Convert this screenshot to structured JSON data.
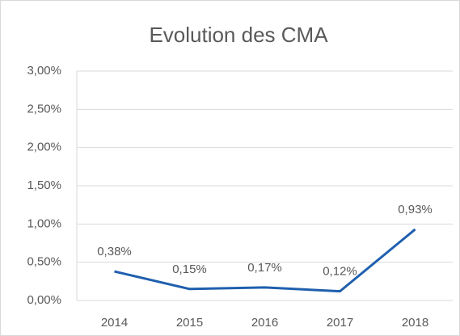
{
  "chart_data": {
    "type": "line",
    "title": "Evolution des CMA",
    "categories": [
      "2014",
      "2015",
      "2016",
      "2017",
      "2018"
    ],
    "series": [
      {
        "name": "CMA",
        "color": "#1f5fae",
        "values": [
          0.38,
          0.15,
          0.17,
          0.12,
          0.93
        ],
        "value_labels": [
          "0,38%",
          "0,15%",
          "0,17%",
          "0,12%",
          "0,93%"
        ]
      }
    ],
    "ylim": [
      0,
      3
    ],
    "yticks": [
      {
        "value": 0,
        "label": "0,00%"
      },
      {
        "value": 0.5,
        "label": "0,50%"
      },
      {
        "value": 1,
        "label": "1,00%"
      },
      {
        "value": 1.5,
        "label": "1,50%"
      },
      {
        "value": 2,
        "label": "2,00%"
      },
      {
        "value": 2.5,
        "label": "2,50%"
      },
      {
        "value": 3,
        "label": "3,00%"
      }
    ],
    "grid": true
  }
}
